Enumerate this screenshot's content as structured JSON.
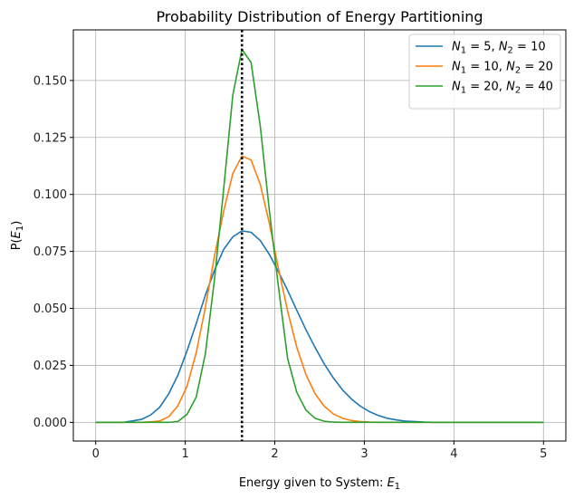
{
  "chart_data": {
    "type": "line",
    "title": "Probability Distribution of Energy Partitioning",
    "xlabel": "Energy given to System: E₁",
    "xlabel_parts": {
      "text": "Energy given to System: ",
      "symbol": "E",
      "sub": "1"
    },
    "ylabel": "P(E₁)",
    "ylabel_parts": {
      "open": "P(",
      "symbol": "E",
      "sub": "1",
      "close": ")"
    },
    "xlim": [
      -0.25,
      5.25
    ],
    "ylim": [
      -0.0082,
      0.1722
    ],
    "xticks": [
      0,
      1,
      2,
      3,
      4,
      5
    ],
    "xtick_labels": [
      "0",
      "1",
      "2",
      "3",
      "4",
      "5"
    ],
    "yticks": [
      0.0,
      0.025,
      0.05,
      0.075,
      0.1,
      0.125,
      0.15
    ],
    "ytick_labels": [
      "0.000",
      "0.025",
      "0.050",
      "0.075",
      "0.100",
      "0.125",
      "0.150"
    ],
    "grid": true,
    "legend_position": "top-right",
    "vline": {
      "x": 1.633,
      "style": "dotted",
      "color": "#000000"
    },
    "x": [
      0.0,
      0.102,
      0.204,
      0.306,
      0.408,
      0.51,
      0.612,
      0.714,
      0.816,
      0.918,
      1.02,
      1.122,
      1.224,
      1.327,
      1.429,
      1.531,
      1.633,
      1.735,
      1.837,
      1.939,
      2.041,
      2.143,
      2.245,
      2.347,
      2.449,
      2.551,
      2.653,
      2.755,
      2.857,
      2.959,
      3.061,
      3.163,
      3.265,
      3.367,
      3.469,
      3.571,
      3.673,
      3.776,
      3.878,
      3.98,
      4.082,
      4.184,
      4.286,
      4.388,
      4.49,
      4.592,
      4.694,
      4.796,
      4.898,
      5.0
    ],
    "series": [
      {
        "name": "N₁ = 5, N₂ = 10",
        "label": {
          "n1": "5",
          "n2": "10"
        },
        "color": "#1f77b4",
        "values": [
          0.0,
          0.0,
          0.0,
          0.0,
          0.0006,
          0.0013,
          0.0032,
          0.0066,
          0.0126,
          0.0207,
          0.0314,
          0.0433,
          0.0557,
          0.0668,
          0.0759,
          0.0814,
          0.084,
          0.0834,
          0.0798,
          0.0737,
          0.0661,
          0.0579,
          0.0492,
          0.0407,
          0.0329,
          0.0257,
          0.0195,
          0.0143,
          0.0102,
          0.007,
          0.0046,
          0.0029,
          0.0017,
          0.001,
          0.0005,
          0.0003,
          0.0001,
          0.0,
          0.0,
          0.0,
          0.0,
          0.0,
          0.0,
          0.0,
          0.0,
          0.0,
          0.0,
          0.0,
          0.0,
          0.0
        ]
      },
      {
        "name": "N₁ = 10, N₂ = 20",
        "label": {
          "n1": "10",
          "n2": "20"
        },
        "color": "#ff7f0e",
        "values": [
          0.0,
          0.0,
          0.0,
          0.0,
          0.0,
          0.0,
          0.0002,
          0.0006,
          0.0025,
          0.0073,
          0.0159,
          0.0305,
          0.0504,
          0.0731,
          0.0927,
          0.1092,
          0.1168,
          0.1151,
          0.1045,
          0.0873,
          0.0674,
          0.0488,
          0.033,
          0.021,
          0.0126,
          0.0071,
          0.0037,
          0.0018,
          0.0008,
          0.0003,
          0.0001,
          0.0,
          0.0,
          0.0,
          0.0,
          0.0,
          0.0,
          0.0,
          0.0,
          0.0,
          0.0,
          0.0,
          0.0,
          0.0,
          0.0,
          0.0,
          0.0,
          0.0,
          0.0,
          0.0
        ]
      },
      {
        "name": "N₁ = 20, N₂ = 40",
        "label": {
          "n1": "20",
          "n2": "40"
        },
        "color": "#2ca02c",
        "values": [
          0.0,
          0.0,
          0.0,
          0.0,
          0.0,
          0.0,
          0.0,
          0.0,
          0.0,
          0.0004,
          0.0035,
          0.011,
          0.03,
          0.0629,
          0.1025,
          0.1436,
          0.1636,
          0.1579,
          0.1302,
          0.0929,
          0.0593,
          0.028,
          0.0132,
          0.0054,
          0.0018,
          0.0005,
          0.0001,
          0.0,
          0.0,
          0.0,
          0.0,
          0.0,
          0.0,
          0.0,
          0.0,
          0.0,
          0.0,
          0.0,
          0.0,
          0.0,
          0.0,
          0.0,
          0.0,
          0.0,
          0.0,
          0.0,
          0.0,
          0.0,
          0.0,
          0.0
        ]
      }
    ]
  }
}
